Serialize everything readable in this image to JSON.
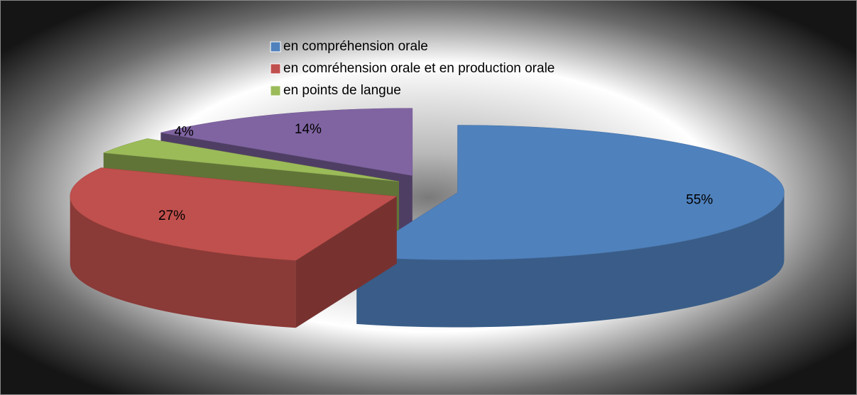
{
  "chart_data": {
    "type": "pie",
    "categories": [
      "en compréhension orale",
      "en comréhension orale et en  production orale",
      "en points de langue",
      null
    ],
    "values": [
      55,
      27,
      4,
      14
    ],
    "value_labels": [
      "55%",
      "27%",
      "4%",
      "14%"
    ],
    "colors": [
      "#4f81bd",
      "#c0504d",
      "#9bbb59",
      "#8064a2"
    ]
  }
}
